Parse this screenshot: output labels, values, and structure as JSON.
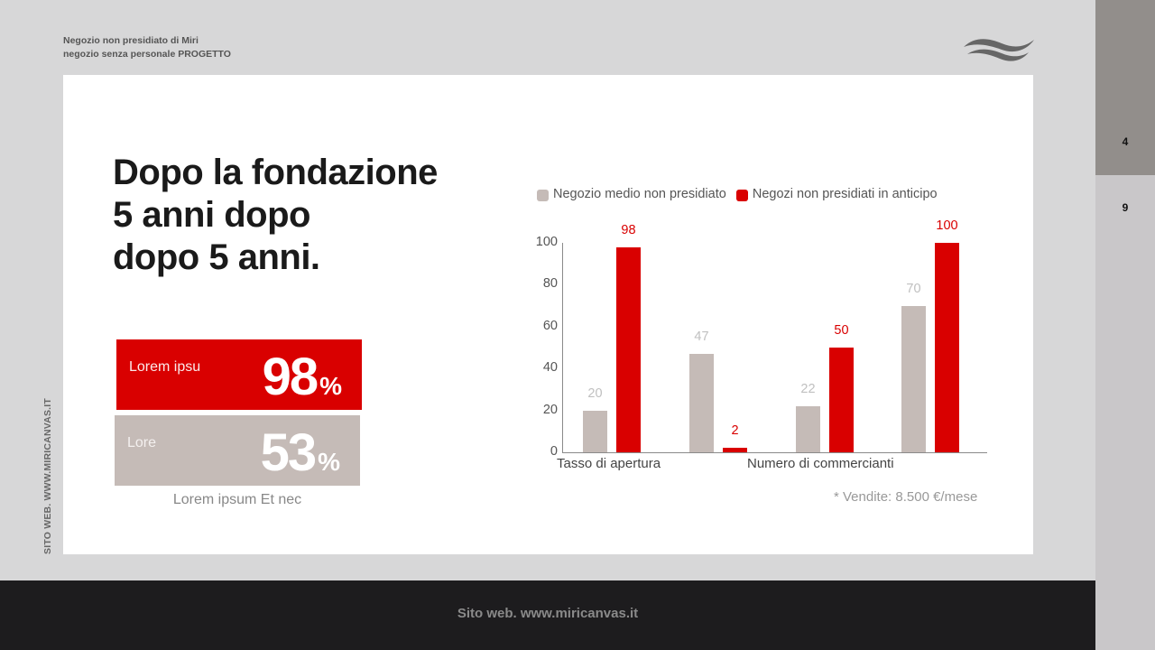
{
  "header": {
    "line1": "Negozio non presidiato di Miri",
    "line2": "negozio senza personale PROGETTO",
    "logo_icon": "wave-logo-icon"
  },
  "side_text": "SITO WEB. WWW.MIRICANVAS.IT",
  "title": {
    "line1": "Dopo la fondazione",
    "line2": "5 anni dopo",
    "line3": "dopo 5 anni."
  },
  "stats": [
    {
      "label": "Lorem ipsu",
      "value": "98",
      "unit": "%",
      "color": "#d90000"
    },
    {
      "label": "Lore",
      "value": "53",
      "unit": "%",
      "color": "#c5bbb7"
    }
  ],
  "stats_caption": "Lorem ipsum Et nec",
  "chart_data": {
    "type": "bar",
    "title": "",
    "xlabel": "",
    "ylabel": "",
    "ylim": [
      0,
      100
    ],
    "yticks": [
      0,
      20,
      40,
      60,
      80,
      100
    ],
    "grid": false,
    "legend_position": "top",
    "categories": [
      "Tasso di apertura",
      "",
      "Numero di commercianti",
      ""
    ],
    "category_labels_visible": [
      "Tasso di apertura",
      "Numero di commercianti"
    ],
    "series": [
      {
        "name": "Negozio medio non presidiato",
        "color": "#c5bbb7",
        "label_color": "#c0c0c0",
        "values": [
          20,
          47,
          22,
          70
        ]
      },
      {
        "name": "Negozi non presidiati in anticipo",
        "color": "#d90000",
        "label_color": "#d90000",
        "values": [
          98,
          2,
          50,
          100
        ]
      }
    ],
    "footnote": "* Vendite: 8.500 €/mese"
  },
  "right_rail": {
    "items": [
      {
        "label": "4",
        "active": true
      },
      {
        "label": "9",
        "active": false
      }
    ]
  },
  "footer": {
    "text": "Sito web. www.miricanvas.it"
  }
}
